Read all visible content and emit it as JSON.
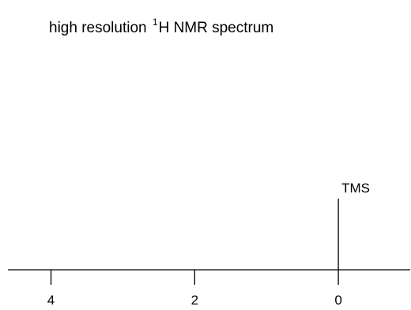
{
  "chart_data": {
    "type": "line",
    "title": {
      "prefix": "high resolution ",
      "superscript": "1",
      "suffix": "H NMR spectrum"
    },
    "xlabel": "",
    "ylabel": "",
    "x_axis": {
      "reversed": true,
      "xlim": [
        4.6,
        -1.0
      ],
      "ticks": [
        4,
        2,
        0
      ],
      "tick_labels": [
        "4",
        "2",
        "0"
      ]
    },
    "peaks": [
      {
        "x": 0,
        "height": 0.41,
        "label": "TMS"
      }
    ],
    "ylim": [
      0,
      1
    ],
    "grid": false,
    "legend": "none",
    "colors": {
      "line": "#000000",
      "text": "#000000",
      "background": "#ffffff"
    }
  }
}
